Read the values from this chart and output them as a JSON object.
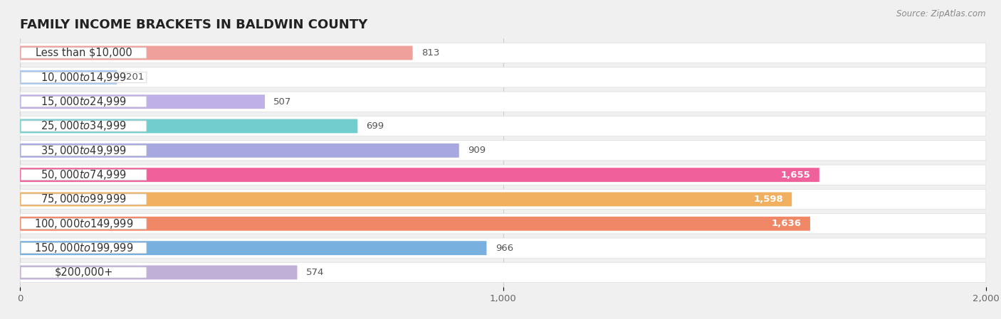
{
  "title": "FAMILY INCOME BRACKETS IN BALDWIN COUNTY",
  "source": "Source: ZipAtlas.com",
  "categories": [
    "Less than $10,000",
    "$10,000 to $14,999",
    "$15,000 to $24,999",
    "$25,000 to $34,999",
    "$35,000 to $49,999",
    "$50,000 to $74,999",
    "$75,000 to $99,999",
    "$100,000 to $149,999",
    "$150,000 to $199,999",
    "$200,000+"
  ],
  "values": [
    813,
    201,
    507,
    699,
    909,
    1655,
    1598,
    1636,
    966,
    574
  ],
  "bar_colors": [
    "#f0a09a",
    "#a8c8f0",
    "#c0b0e8",
    "#72cece",
    "#a8a8e0",
    "#f0609a",
    "#f0b060",
    "#f08868",
    "#78b0e0",
    "#c0b0d8"
  ],
  "xlim": [
    0,
    2000
  ],
  "xticks": [
    0,
    1000,
    2000
  ],
  "background_color": "#f0f0f0",
  "row_bg_color": "#ffffff",
  "title_fontsize": 13,
  "label_fontsize": 10.5,
  "value_fontsize": 9.5
}
